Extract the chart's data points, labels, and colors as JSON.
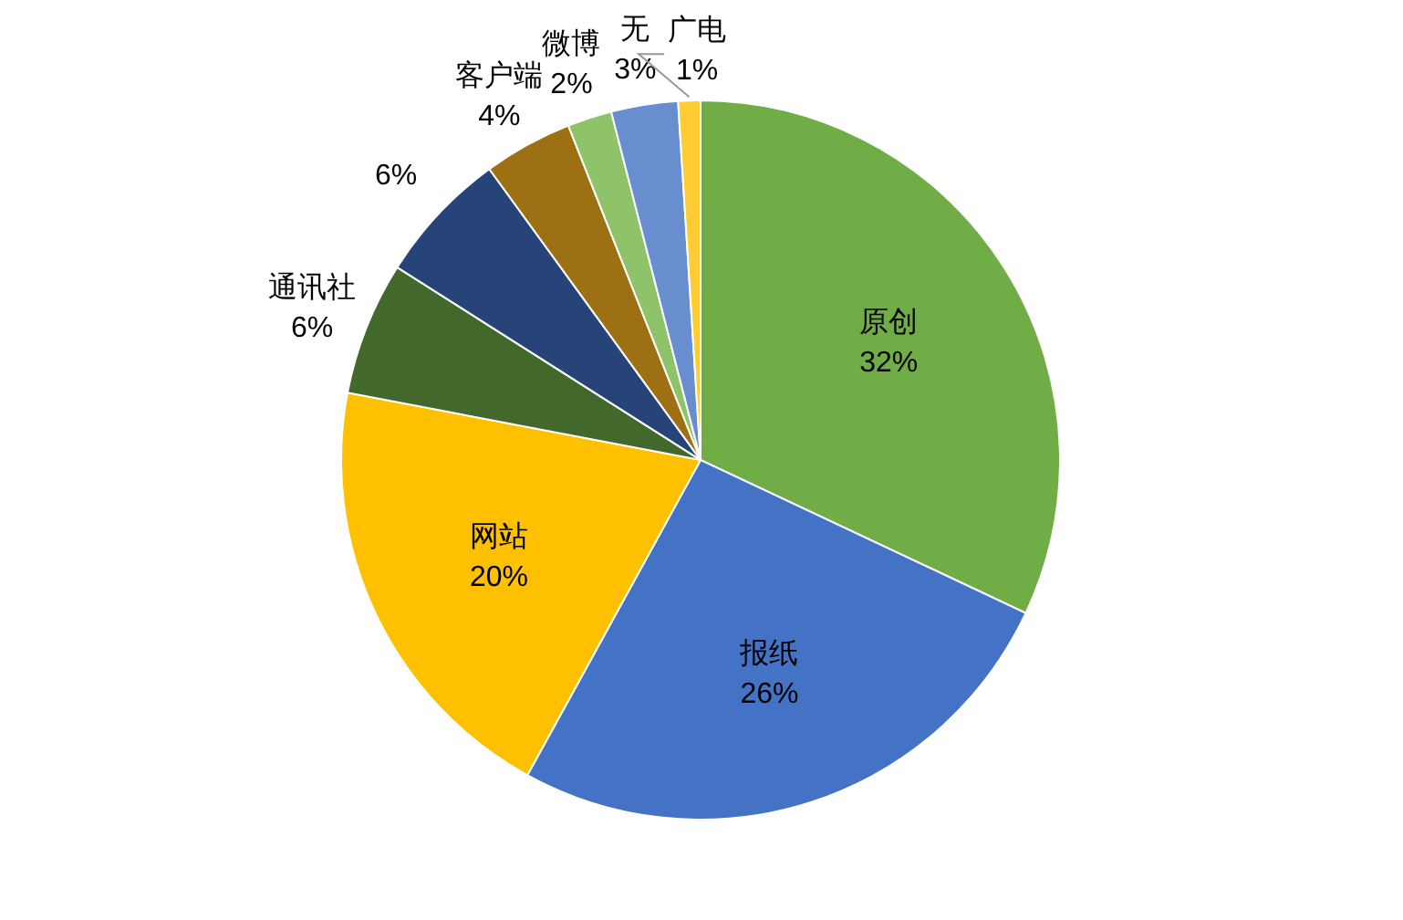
{
  "chart_data": {
    "type": "pie",
    "categories": [
      "原创",
      "报纸",
      "网站",
      "通讯社",
      null,
      "客户端",
      "微博",
      "无",
      "广电"
    ],
    "values": [
      32,
      26,
      20,
      6,
      6,
      4,
      2,
      3,
      1
    ],
    "colors": [
      "#70ad47",
      "#4472c4",
      "#ffc000",
      "#43682b",
      "#264478",
      "#9e7014",
      "#8fc36a",
      "#698ed0",
      "#ffcd33"
    ],
    "value_labels": [
      "32%",
      "26%",
      "20%",
      "6%",
      "6%",
      "4%",
      "2%",
      "3%",
      "1%"
    ]
  }
}
